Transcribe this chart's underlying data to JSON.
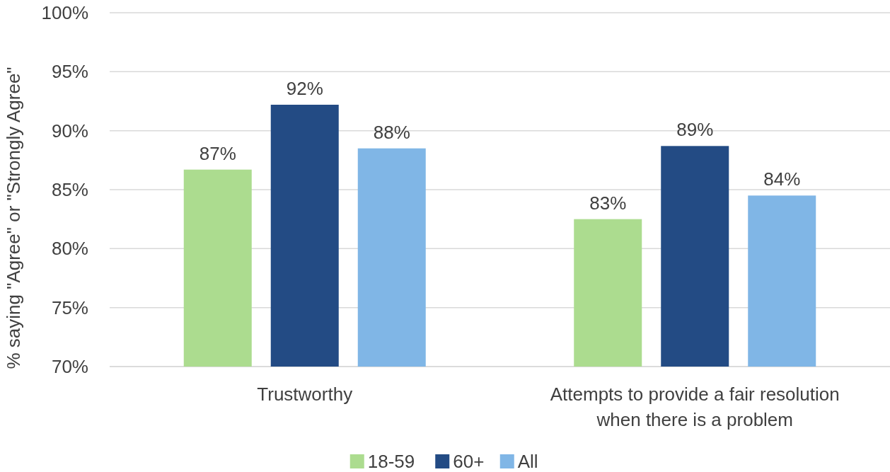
{
  "chart_data": {
    "type": "bar",
    "ylabel": "% saying \"Agree\" or \"Strongly Agree\"",
    "categories": [
      "Trustworthy",
      "Attempts to provide a fair resolution when there is a problem"
    ],
    "series": [
      {
        "name": "18-59",
        "color": "#acdc8f",
        "values": [
          86.7,
          82.5
        ],
        "value_labels": [
          "87%",
          "83%"
        ]
      },
      {
        "name": "60+",
        "color": "#234b84",
        "values": [
          92.2,
          88.7
        ],
        "value_labels": [
          "92%",
          "89%"
        ]
      },
      {
        "name": "All",
        "color": "#80b6e6",
        "values": [
          88.5,
          84.5
        ],
        "value_labels": [
          "88%",
          "84%"
        ]
      }
    ],
    "ylim": [
      70,
      100
    ],
    "yticks": [
      {
        "value": 70,
        "label": "70%"
      },
      {
        "value": 75,
        "label": "75%"
      },
      {
        "value": 80,
        "label": "80%"
      },
      {
        "value": 85,
        "label": "85%"
      },
      {
        "value": 90,
        "label": "90%"
      },
      {
        "value": 95,
        "label": "95%"
      },
      {
        "value": 100,
        "label": "100%"
      }
    ],
    "grid": "y",
    "legend": "bottom"
  }
}
